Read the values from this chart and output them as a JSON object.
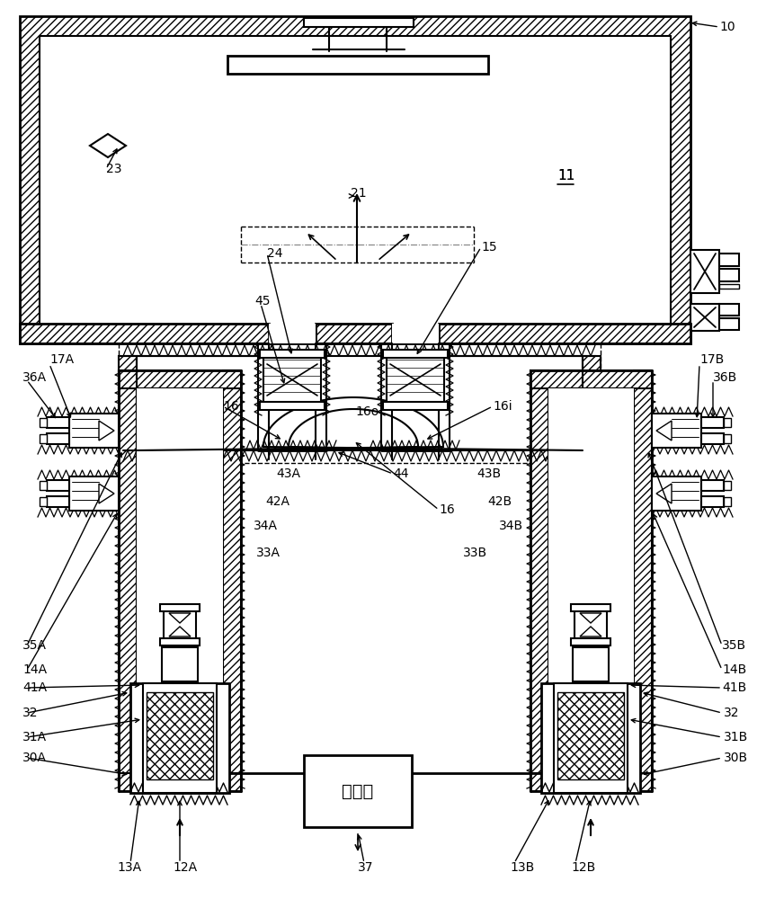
{
  "bg": "#ffffff",
  "lc": "#000000",
  "labels": [
    [
      "10",
      800,
      30,
      10
    ],
    [
      "11",
      620,
      195,
      11
    ],
    [
      "15",
      535,
      275,
      10
    ],
    [
      "21",
      390,
      215,
      10
    ],
    [
      "23",
      118,
      188,
      10
    ],
    [
      "24",
      297,
      282,
      10
    ],
    [
      "45",
      283,
      335,
      10
    ],
    [
      "16i",
      248,
      452,
      10
    ],
    [
      "16o",
      395,
      458,
      10
    ],
    [
      "16i",
      548,
      452,
      10
    ],
    [
      "16",
      488,
      567,
      10
    ],
    [
      "44",
      437,
      527,
      10
    ],
    [
      "43A",
      307,
      527,
      10
    ],
    [
      "43B",
      530,
      527,
      10
    ],
    [
      "42A",
      295,
      558,
      10
    ],
    [
      "42B",
      542,
      558,
      10
    ],
    [
      "34A",
      282,
      585,
      10
    ],
    [
      "34B",
      555,
      585,
      10
    ],
    [
      "33A",
      285,
      615,
      10
    ],
    [
      "33B",
      515,
      615,
      10
    ],
    [
      "17A",
      55,
      400,
      10
    ],
    [
      "17B",
      778,
      400,
      10
    ],
    [
      "36A",
      25,
      420,
      10
    ],
    [
      "36B",
      793,
      420,
      10
    ],
    [
      "35A",
      25,
      718,
      10
    ],
    [
      "35B",
      803,
      718,
      10
    ],
    [
      "14A",
      25,
      745,
      10
    ],
    [
      "14B",
      803,
      745,
      10
    ],
    [
      "41A",
      25,
      765,
      10
    ],
    [
      "41B",
      803,
      765,
      10
    ],
    [
      "32",
      25,
      793,
      10
    ],
    [
      "32",
      805,
      793,
      10
    ],
    [
      "31A",
      25,
      820,
      10
    ],
    [
      "31B",
      805,
      820,
      10
    ],
    [
      "30A",
      25,
      843,
      10
    ],
    [
      "30B",
      805,
      843,
      10
    ],
    [
      "13A",
      130,
      965,
      10
    ],
    [
      "12A",
      192,
      965,
      10
    ],
    [
      "37",
      398,
      965,
      10
    ],
    [
      "13B",
      567,
      965,
      10
    ],
    [
      "12B",
      635,
      965,
      10
    ]
  ]
}
